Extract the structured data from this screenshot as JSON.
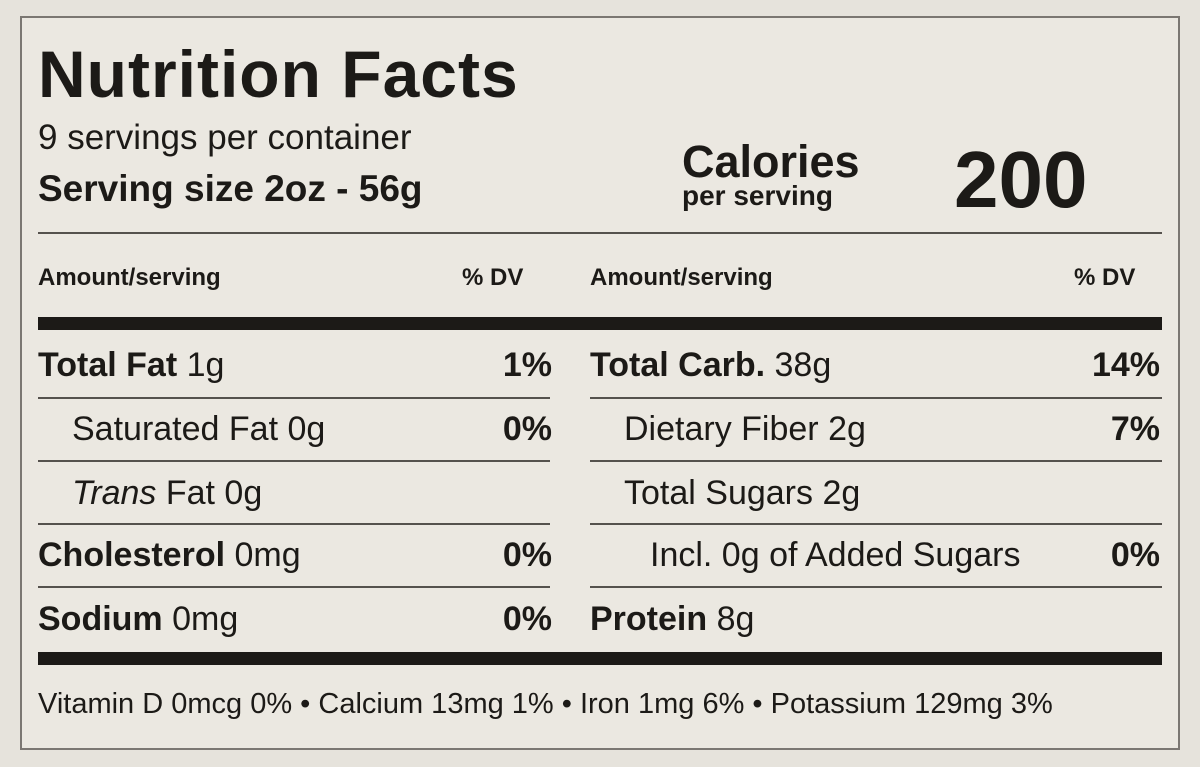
{
  "title": "Nutrition Facts",
  "servings_per_container": "9 servings per container",
  "serving_size": "Serving size 2oz - 56g",
  "calories": {
    "label": "Calories",
    "sub": "per serving",
    "value": "200"
  },
  "left_header": {
    "amount": "Amount/serving",
    "dv": "% DV"
  },
  "right_header": {
    "amount": "Amount/serving",
    "dv": "% DV"
  },
  "left_rows": [
    {
      "name": "Total Fat",
      "amount": "1g",
      "dv": "1%"
    },
    {
      "name": "Saturated Fat",
      "amount": "0g",
      "dv": "0%"
    },
    {
      "name_italic": "Trans",
      "name": "Fat",
      "amount": "0g",
      "dv": ""
    },
    {
      "name": "Cholesterol",
      "amount": "0mg",
      "dv": "0%"
    },
    {
      "name": "Sodium",
      "amount": "0mg",
      "dv": "0%"
    }
  ],
  "right_rows": [
    {
      "name": "Total Carb.",
      "amount": "38g",
      "dv": "14%"
    },
    {
      "name": "Dietary Fiber",
      "amount": "2g",
      "dv": "7%"
    },
    {
      "name": "Total Sugars",
      "amount": "2g",
      "dv": ""
    },
    {
      "name": "Incl. 0g of Added Sugars",
      "amount": "",
      "dv": "0%"
    },
    {
      "name": "Protein",
      "amount": "8g",
      "dv": ""
    }
  ],
  "footer": "Vitamin D 0mcg 0% • Calcium 13mg 1% • Iron 1mg 6% • Potassium 129mg 3%"
}
